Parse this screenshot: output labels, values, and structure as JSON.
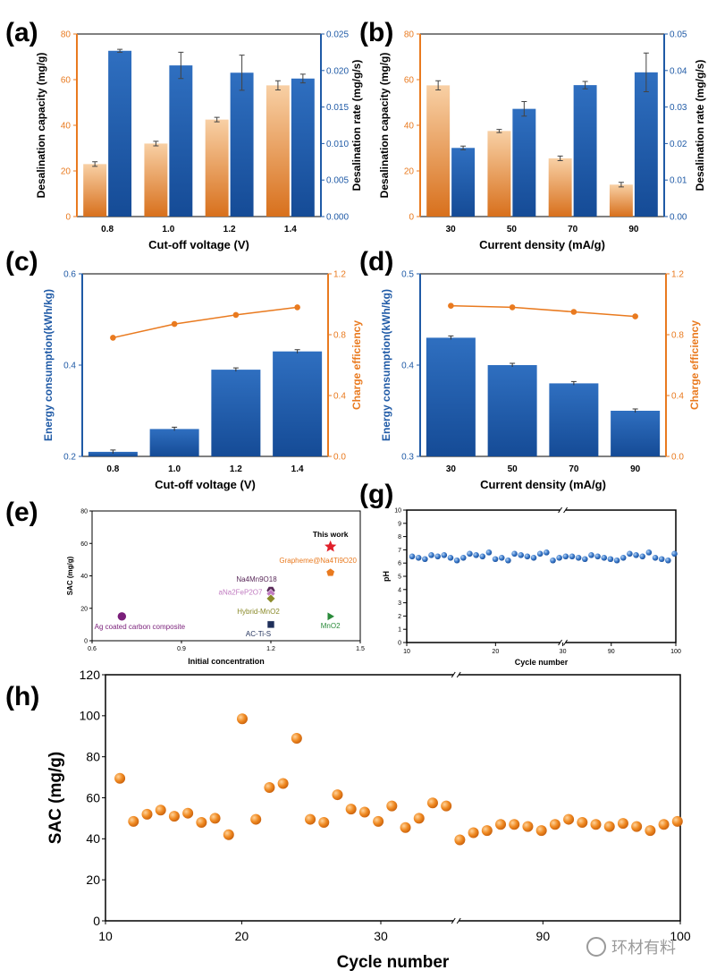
{
  "colors": {
    "orange": "#e97a1f",
    "blue": "#1f5aa6",
    "orangeLight": "#f6c79a",
    "red": "#e0202a"
  },
  "panels": {
    "a": {
      "label": "(a)",
      "xlabel": "Cut-off voltage (V)",
      "yleft": "Desalination capacity (mg/g)",
      "yright": "Desalination rate (mg/g/s)",
      "categories": [
        "0.8",
        "1.0",
        "1.2",
        "1.4"
      ],
      "left_values": [
        23,
        32,
        42.5,
        57.5
      ],
      "left_err": [
        1,
        1,
        1,
        2
      ],
      "right_values": [
        0.0227,
        0.0207,
        0.0197,
        0.0189
      ],
      "right_err": [
        0.0002,
        0.0018,
        0.0024,
        0.0006
      ],
      "left_ticks": [
        "0",
        "20",
        "40",
        "60",
        "80"
      ],
      "right_ticks": [
        "0.000",
        "0.005",
        "0.010",
        "0.015",
        "0.020",
        "0.025"
      ]
    },
    "b": {
      "label": "(b)",
      "xlabel": "Current density (mA/g)",
      "yleft": "Desalination capacity (mg/g)",
      "yright": "Desalination rate (mg/g/s)",
      "categories": [
        "30",
        "50",
        "70",
        "90"
      ],
      "left_values": [
        57.5,
        37.5,
        25.5,
        14
      ],
      "left_err": [
        2,
        0.7,
        1,
        1
      ],
      "right_values": [
        0.0188,
        0.0295,
        0.036,
        0.0395
      ],
      "right_err": [
        0.0005,
        0.002,
        0.001,
        0.0053
      ],
      "left_ticks": [
        "0",
        "20",
        "40",
        "60",
        "80"
      ],
      "right_ticks": [
        "0.00",
        "0.01",
        "0.02",
        "0.03",
        "0.04",
        "0.05"
      ]
    },
    "c": {
      "label": "(c)",
      "xlabel": "Cut-off voltage (V)",
      "yleft": "Energy consumption(kWh/kg)",
      "yright": "Charge efficiency",
      "categories": [
        "0.8",
        "1.0",
        "1.2",
        "1.4"
      ],
      "bar_values": [
        0.21,
        0.26,
        0.39,
        0.43
      ],
      "line_values": [
        0.78,
        0.87,
        0.93,
        0.98
      ],
      "left_ticks": [
        "0.2",
        "0.4",
        "0.6"
      ],
      "right_ticks": [
        "0.0",
        "0.4",
        "0.8",
        "1.2"
      ]
    },
    "d": {
      "label": "(d)",
      "xlabel": "Current density (mA/g)",
      "yleft": "Energy consumption(kWh/kg)",
      "yright": "Charge efficiency",
      "categories": [
        "30",
        "50",
        "70",
        "90"
      ],
      "bar_values": [
        0.43,
        0.4,
        0.38,
        0.35
      ],
      "line_values": [
        0.99,
        0.98,
        0.95,
        0.92
      ],
      "left_ticks": [
        "0.3",
        "0.4",
        "0.5"
      ],
      "right_ticks": [
        "0.0",
        "0.4",
        "0.8",
        "1.2"
      ]
    },
    "e": {
      "label": "(e)",
      "xlabel": "Initial concentration",
      "ylabel": "SAC (mg/g)",
      "x_ticks": [
        "0.6",
        "0.9",
        "1.2",
        "1.5"
      ],
      "y_ticks": [
        "0",
        "20",
        "40",
        "60",
        "80"
      ],
      "points": [
        {
          "name": "This work",
          "x": 1.4,
          "y": 58,
          "color": "#e0202a",
          "marker": "star"
        },
        {
          "name": "Grapheme@Na4Ti9O20",
          "x": 1.4,
          "y": 42,
          "color": "#e97a1f",
          "marker": "pentagon"
        },
        {
          "name": "Na4Mn9O18",
          "x": 1.2,
          "y": 31,
          "color": "#5a2a5a",
          "marker": "hexagon"
        },
        {
          "name": "aNa2FeP2O7",
          "x": 1.2,
          "y": 29,
          "color": "#c07ac0",
          "marker": "diamond"
        },
        {
          "name": "Hybrid-MnO2",
          "x": 1.2,
          "y": 26,
          "color": "#8a8a2a",
          "marker": "diamond"
        },
        {
          "name": "Ag coated carbon composite",
          "x": 0.7,
          "y": 15,
          "color": "#7a1f7a",
          "marker": "circle"
        },
        {
          "name": "AC-Ti-S",
          "x": 1.2,
          "y": 10,
          "color": "#1f2f5a",
          "marker": "square"
        },
        {
          "name": "MnO2",
          "x": 1.4,
          "y": 15,
          "color": "#2a8a3a",
          "marker": "triangle"
        }
      ]
    },
    "g": {
      "label": "(g)",
      "xlabel": "Cycle number",
      "ylabel": "pH",
      "x_ticks": [
        "10",
        "20",
        "30",
        "90",
        "100"
      ],
      "y_ticks": [
        "0",
        "1",
        "2",
        "3",
        "4",
        "5",
        "6",
        "7",
        "8",
        "9",
        "10"
      ],
      "values": [
        6.5,
        6.4,
        6.3,
        6.6,
        6.5,
        6.6,
        6.4,
        6.2,
        6.4,
        6.7,
        6.6,
        6.5,
        6.8,
        6.3,
        6.4,
        6.2,
        6.7,
        6.6,
        6.5,
        6.4,
        6.7,
        6.8,
        6.2,
        6.4,
        6.5,
        6.5,
        6.4,
        6.3,
        6.6,
        6.5,
        6.4,
        6.3,
        6.2,
        6.4,
        6.7,
        6.6,
        6.5,
        6.8,
        6.4,
        6.3,
        6.2,
        6.7
      ]
    },
    "h": {
      "label": "(h)",
      "xlabel": "Cycle number",
      "ylabel": "SAC (mg/g)",
      "x_ticks": [
        "10",
        "20",
        "30",
        "90",
        "100"
      ],
      "y_ticks": [
        "0",
        "20",
        "40",
        "60",
        "80",
        "100",
        "120"
      ],
      "values": [
        69.5,
        48.5,
        52,
        54,
        51,
        52.5,
        48,
        50,
        42,
        98.5,
        49.5,
        65,
        67,
        89,
        49.5,
        48,
        61.5,
        54.5,
        53,
        48.5,
        56,
        45.5,
        50,
        57.5,
        56,
        39.5,
        43,
        44,
        47,
        47,
        46,
        44,
        47,
        49.5,
        48,
        47,
        46,
        47.5,
        46,
        44,
        47,
        48.5
      ]
    }
  },
  "watermark": "环材有料"
}
